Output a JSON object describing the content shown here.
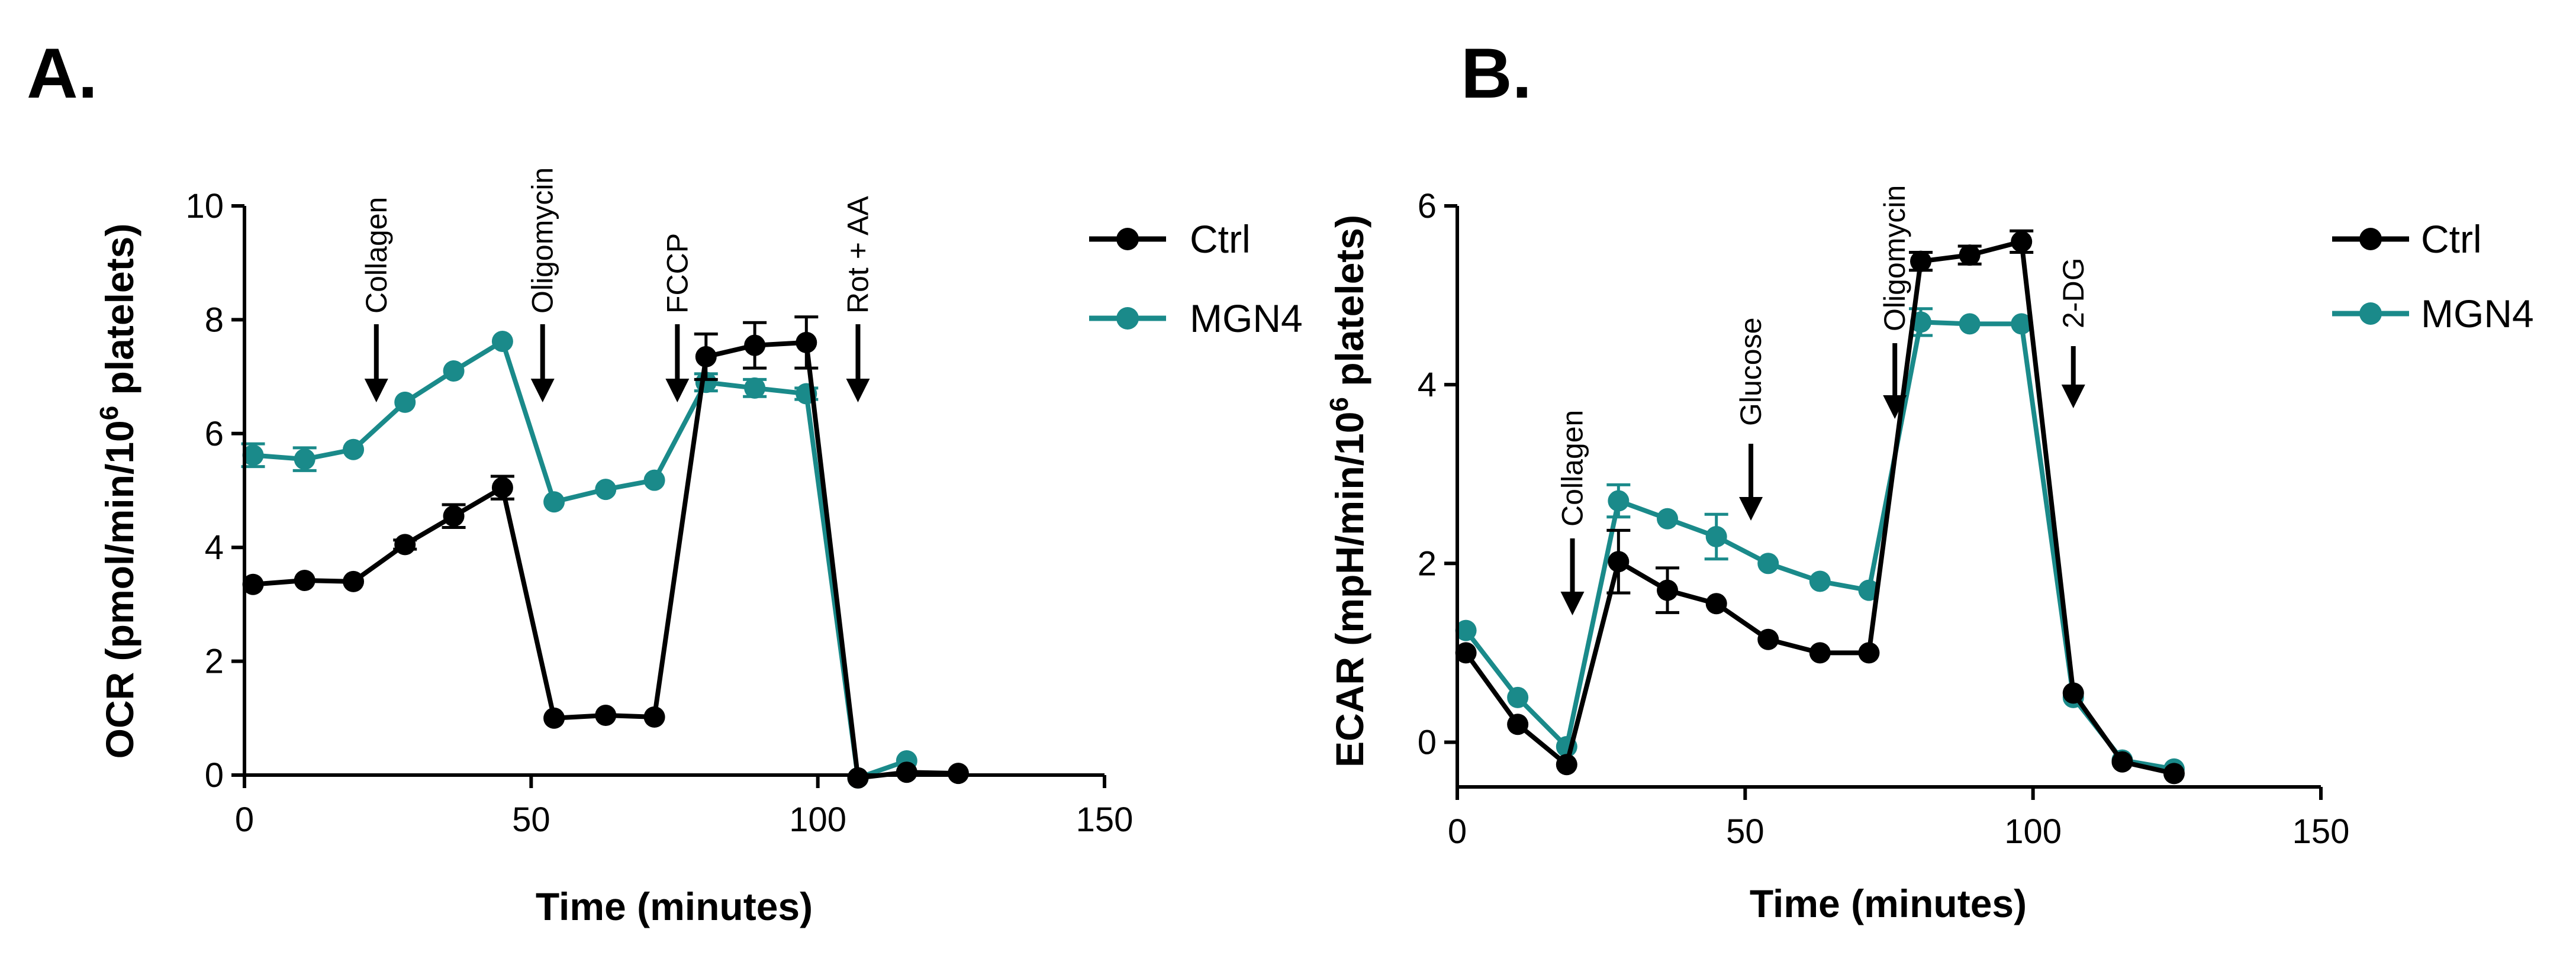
{
  "chart_data": [
    {
      "type": "line",
      "panel_label": "A.",
      "xlabel": "Time (minutes)",
      "ylabel_prefix": "OCR (pmol/min/10",
      "ylabel_sup": "6",
      "ylabel_suffix": " platelets)",
      "xlim": [
        0,
        150
      ],
      "ylim": [
        0,
        10
      ],
      "xticks": [
        "0",
        "50",
        "100",
        "150"
      ],
      "yticks": [
        "0",
        "2",
        "4",
        "6",
        "8",
        "10"
      ],
      "series": [
        {
          "name": "Ctrl",
          "color": "#000000",
          "x": [
            1.5,
            10.5,
            19,
            28,
            36.5,
            45,
            54,
            63,
            71.5,
            80.5,
            89,
            98,
            107,
            115.5,
            124.5
          ],
          "y": [
            3.35,
            3.42,
            3.4,
            4.05,
            4.55,
            5.05,
            1.0,
            1.05,
            1.02,
            7.35,
            7.55,
            7.6,
            -0.05,
            0.05,
            0.03
          ],
          "err": [
            0.05,
            0.05,
            0.05,
            0.08,
            0.2,
            0.2,
            0.05,
            0.05,
            0.05,
            0.4,
            0.4,
            0.45,
            0.05,
            0.05,
            0.03
          ]
        },
        {
          "name": "MGN4",
          "color": "#1a8a8a",
          "x": [
            1.5,
            10.5,
            19,
            28,
            36.5,
            45,
            54,
            63,
            71.5,
            80.5,
            89,
            98,
            107,
            115.5
          ],
          "y": [
            5.62,
            5.55,
            5.72,
            6.55,
            7.1,
            7.62,
            4.8,
            5.02,
            5.18,
            6.9,
            6.8,
            6.7,
            -0.05,
            0.25
          ],
          "err": [
            0.2,
            0.2,
            0.05,
            0.05,
            0.05,
            0.05,
            0.05,
            0.05,
            0.05,
            0.15,
            0.15,
            0.1,
            0.05,
            0.05
          ]
        }
      ],
      "annotations": [
        {
          "label": "Collagen",
          "x": 23
        },
        {
          "label": "Oligomycin",
          "x": 52
        },
        {
          "label": "FCCP",
          "x": 75.5
        },
        {
          "label": "Rot + AA",
          "x": 107
        }
      ],
      "legend": {
        "position": "top-right",
        "entries": [
          "Ctrl",
          "MGN4"
        ]
      }
    },
    {
      "type": "line",
      "panel_label": "B.",
      "xlabel": "Time (minutes)",
      "ylabel_prefix": "ECAR (mpH/min/10",
      "ylabel_sup": "6",
      "ylabel_suffix": " platelets)",
      "xlim": [
        0,
        150
      ],
      "ylim": [
        -0.5,
        6
      ],
      "xticks": [
        "0",
        "50",
        "100",
        "150"
      ],
      "yticks": [
        "0",
        "2",
        "4",
        "6"
      ],
      "series": [
        {
          "name": "Ctrl",
          "color": "#000000",
          "x": [
            1.5,
            10.5,
            19,
            28,
            36.5,
            45,
            54,
            63,
            71.5,
            80.5,
            89,
            98,
            107,
            115.5,
            124.5
          ],
          "y": [
            1.0,
            0.2,
            -0.25,
            2.02,
            1.7,
            1.55,
            1.15,
            1.0,
            1.0,
            5.38,
            5.45,
            5.6,
            0.55,
            -0.22,
            -0.35
          ],
          "err": [
            0.05,
            0.05,
            0.05,
            0.35,
            0.25,
            0.05,
            0.05,
            0.05,
            0.05,
            0.1,
            0.1,
            0.12,
            0.05,
            0.05,
            0.05
          ]
        },
        {
          "name": "MGN4",
          "color": "#1a8a8a",
          "x": [
            1.5,
            10.5,
            19,
            28,
            36.5,
            45,
            54,
            63,
            71.5,
            80.5,
            89,
            98,
            107,
            115.5,
            124.5
          ],
          "y": [
            1.25,
            0.5,
            -0.05,
            2.7,
            2.5,
            2.3,
            2.0,
            1.8,
            1.7,
            4.7,
            4.68,
            4.68,
            0.5,
            -0.2,
            -0.3
          ],
          "err": [
            0.05,
            0.05,
            0.05,
            0.18,
            0.05,
            0.25,
            0.05,
            0.05,
            0.05,
            0.15,
            0.05,
            0.05,
            0.05,
            0.05,
            0.05
          ]
        }
      ],
      "annotations": [
        {
          "label": "Collagen",
          "x": 20
        },
        {
          "label": "Glucose",
          "x": 51
        },
        {
          "label": "Oligomycin",
          "x": 76
        },
        {
          "label": "2-DG",
          "x": 107
        }
      ],
      "legend": {
        "position": "top-right",
        "entries": [
          "Ctrl",
          "MGN4"
        ]
      }
    }
  ]
}
